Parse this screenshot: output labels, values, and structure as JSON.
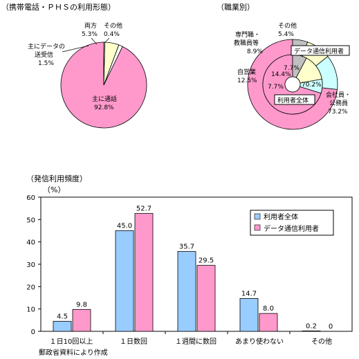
{
  "colors": {
    "pink": "#ff99cc",
    "blue": "#99ccff",
    "yellow": "#ffffcc",
    "cyan": "#ccffff",
    "gray": "#c0c0c0",
    "white": "#ffffff"
  },
  "chart_data": [
    {
      "type": "pie",
      "title": "（携帯電話・ＰＨＳの利用形態）",
      "slices": [
        {
          "label": "主に通話",
          "value": 92.8,
          "value_text": "92.8%",
          "color": "#ff99cc"
        },
        {
          "label": "主にデータの送受信",
          "label_lines": [
            "主にデータの",
            "送受信"
          ],
          "value": 1.5,
          "value_text": "1.5%",
          "color": "#ffffff"
        },
        {
          "label": "両方",
          "value": 5.3,
          "value_text": "5.3%",
          "color": "#ffffcc"
        },
        {
          "label": "その他",
          "value": 0.4,
          "value_text": "0.4%",
          "color": "#ffffff"
        }
      ]
    },
    {
      "type": "pie",
      "title": "（職業別）",
      "inner_ring_label": "利用者全体",
      "outer_ring_label": "データ通信利用者",
      "inner_ring": [
        {
          "label": "会社員・公務員",
          "value": 70.2,
          "value_text": "70.2%",
          "color": "#ff99cc"
        },
        {
          "label": "自営業",
          "value": 7.7,
          "value_text": "7.7%",
          "color": "#ccffff"
        },
        {
          "label": "専門職・教職員等",
          "value": 14.4,
          "value_text": "14.4%",
          "color": "#ffffcc"
        },
        {
          "label": "その他",
          "value": 7.7,
          "value_text": "7.7%",
          "color": "#c0c0c0"
        }
      ],
      "outer_ring": [
        {
          "label": "会社員・公務員",
          "label_lines": [
            "会社員・",
            "公務員"
          ],
          "value": 73.2,
          "value_text": "73.2%",
          "color": "#ff99cc"
        },
        {
          "label": "自営業",
          "value": 12.5,
          "value_text": "12.5%",
          "color": "#ccffff"
        },
        {
          "label": "専門職・教職員等",
          "label_lines": [
            "専門職・",
            "教職員等"
          ],
          "value": 8.9,
          "value_text": "8.9%",
          "color": "#ffffcc"
        },
        {
          "label": "その他",
          "value": 5.4,
          "value_text": "5.4%",
          "color": "#c0c0c0"
        }
      ]
    },
    {
      "type": "bar",
      "title": "（発信利用頻度）",
      "ylabel": "（%）",
      "ylim": [
        0,
        60
      ],
      "yticks": [
        0,
        10,
        20,
        30,
        40,
        50,
        60
      ],
      "categories": [
        "１日10回以上",
        "１日数回",
        "１週間に数回",
        "あまり使わない",
        "その他"
      ],
      "series": [
        {
          "name": "利用者全体",
          "color": "#99ccff",
          "values": [
            4.5,
            45.0,
            35.7,
            14.7,
            0.2
          ],
          "labels": [
            "4.5",
            "45.0",
            "35.7",
            "14.7",
            "0.2"
          ]
        },
        {
          "name": "データ通信利用者",
          "color": "#ff99cc",
          "values": [
            9.8,
            52.7,
            29.5,
            8.0,
            0
          ],
          "labels": [
            "9.8",
            "52.7",
            "29.5",
            "8.0",
            "0"
          ]
        }
      ],
      "legend_position": "top-right"
    }
  ],
  "source_note": "郵政省資料により作成"
}
